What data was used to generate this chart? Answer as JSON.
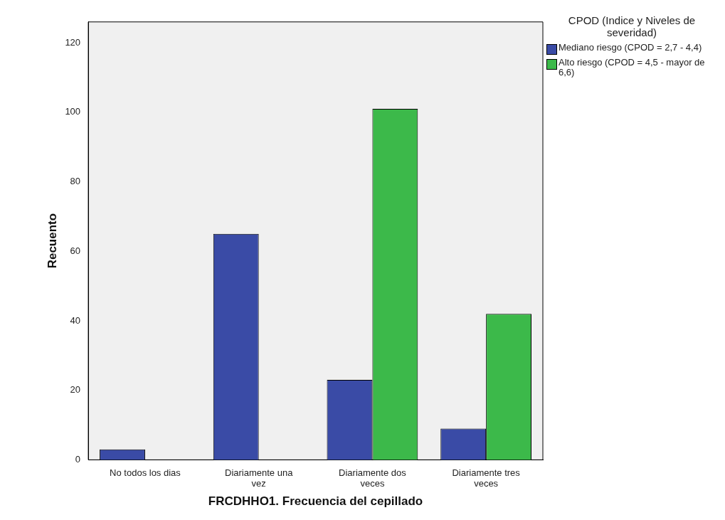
{
  "chart_data": {
    "type": "bar",
    "xlabel": "FRCDHHO1. Frecuencia del cepillado",
    "ylabel": "Recuento",
    "legend_title": "CPOD (Indice y Niveles de severidad)",
    "legend": "right",
    "categories": [
      "No todos los dias",
      "Diariamente una vez",
      "Diariamente dos veces",
      "Diariamente tres veces"
    ],
    "series": [
      {
        "name": "Mediano riesgo (CPOD = 2,7 - 4,4)",
        "color": "#3a4ba6",
        "values": [
          3,
          65,
          23,
          9
        ]
      },
      {
        "name": "Alto riesgo (CPOD = 4,5 - mayor de 6,6)",
        "color": "#3cb94a",
        "values": [
          0,
          0,
          101,
          42
        ]
      }
    ],
    "ylim": [
      0,
      126
    ],
    "yticks": [
      0,
      20,
      40,
      60,
      80,
      100,
      120
    ],
    "grid": false
  }
}
